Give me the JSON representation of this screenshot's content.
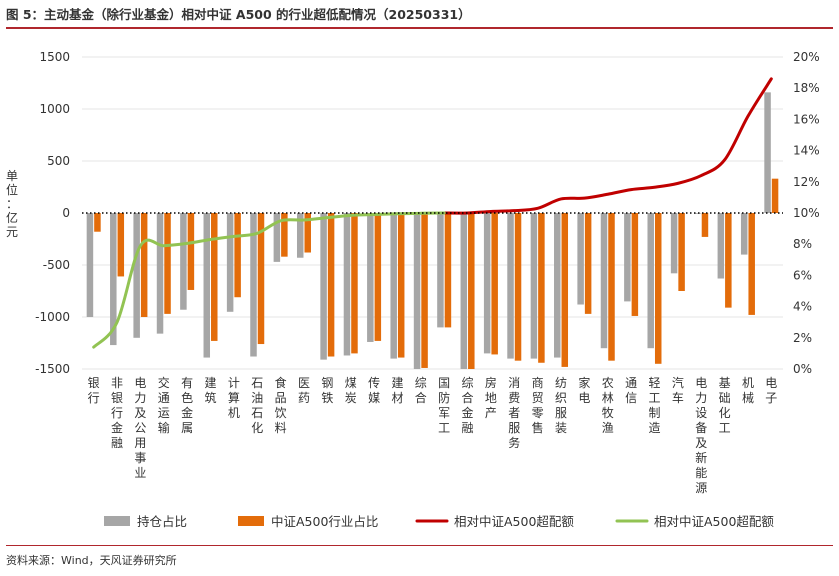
{
  "header": {
    "title": "图 5：主动基金（除行业基金）相对中证 A500 的行业超低配情况（20250331）"
  },
  "footer": {
    "source": "资料来源：Wind，天风证券研究所"
  },
  "chart_data": {
    "type": "bar",
    "unit_label": "单位：亿元",
    "categories": [
      "银行",
      "非银行金融",
      "电力及公用事业",
      "交通运输",
      "有色金属",
      "建筑",
      "计算机",
      "石油石化",
      "食品饮料",
      "医药",
      "钢铁",
      "煤炭",
      "传媒",
      "建材",
      "综合",
      "国防军工",
      "综合金融",
      "房地产",
      "消费者服务",
      "商贸零售",
      "纺织服装",
      "家电",
      "农林牧渔",
      "通信",
      "轻工制造",
      "汽车",
      "电力设备及新能源",
      "基础化工",
      "机械",
      "电子"
    ],
    "y_left": {
      "min": -1500,
      "max": 1500,
      "ticks": [
        -1500,
        -1000,
        -500,
        0,
        500,
        1000,
        1500
      ]
    },
    "y_right": {
      "min": 0,
      "max": 20,
      "ticks": [
        0,
        2,
        4,
        6,
        8,
        10,
        12,
        14,
        16,
        18,
        20
      ],
      "suffix": "%"
    },
    "series": [
      {
        "name": "持仓占比",
        "kind": "bar",
        "axis": "left",
        "color": "#a6a6a6",
        "values": [
          -1000,
          -1270,
          -1200,
          -1160,
          -930,
          -1390,
          -950,
          -1380,
          -470,
          -430,
          -1410,
          -1370,
          -1240,
          -1400,
          -1500,
          -1100,
          -1500,
          -1350,
          -1400,
          -1400,
          -1390,
          -880,
          -1300,
          -850,
          -1300,
          -580,
          0,
          -630,
          -400,
          1160
        ]
      },
      {
        "name": "中证A500行业占比",
        "kind": "bar",
        "axis": "left",
        "color": "#e36c0a",
        "values": [
          -180,
          -610,
          -1000,
          -970,
          -740,
          -1230,
          -810,
          -1260,
          -420,
          -380,
          -1380,
          -1350,
          -1230,
          -1390,
          -1490,
          -1100,
          -1500,
          -1360,
          -1420,
          -1440,
          -1480,
          -970,
          -1420,
          -990,
          -1450,
          -750,
          -230,
          -910,
          -980,
          330
        ]
      },
      {
        "name": "相对中证A500超配额",
        "kind": "line",
        "axis": "right",
        "color": "#c00000",
        "values": [
          null,
          null,
          null,
          null,
          null,
          null,
          null,
          null,
          null,
          null,
          null,
          null,
          null,
          null,
          null,
          10.0,
          10.0,
          10.1,
          10.15,
          10.3,
          10.9,
          10.95,
          11.2,
          11.5,
          11.65,
          11.9,
          12.4,
          13.4,
          16.2,
          18.6
        ]
      },
      {
        "name": "相对中证A500超配额",
        "kind": "line",
        "axis": "right",
        "color": "#92c353",
        "values": [
          1.4,
          3.0,
          7.9,
          7.9,
          8.05,
          8.3,
          8.5,
          8.7,
          9.5,
          9.55,
          9.7,
          9.85,
          9.9,
          9.95,
          9.98,
          10.0,
          null,
          null,
          null,
          null,
          null,
          null,
          null,
          null,
          null,
          null,
          null,
          null,
          null,
          null
        ]
      }
    ],
    "legend_position": "bottom",
    "zero_line": "dotted"
  }
}
